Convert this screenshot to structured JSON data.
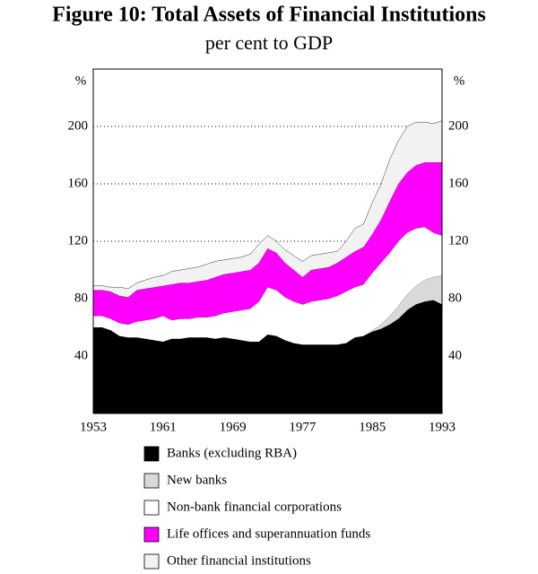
{
  "chart_data": {
    "type": "stacked_area",
    "title": "Figure 10: Total Assets of Financial Institutions",
    "subtitle": "per cent to GDP",
    "y_label": "%",
    "x": [
      1953,
      1954,
      1955,
      1956,
      1957,
      1958,
      1959,
      1960,
      1961,
      1962,
      1963,
      1964,
      1965,
      1966,
      1967,
      1968,
      1969,
      1970,
      1971,
      1972,
      1973,
      1974,
      1975,
      1976,
      1977,
      1978,
      1979,
      1980,
      1981,
      1982,
      1983,
      1984,
      1985,
      1986,
      1987,
      1988,
      1989,
      1990,
      1991,
      1992,
      1993
    ],
    "xlim": [
      1953,
      1993
    ],
    "xticks": [
      1953,
      1961,
      1969,
      1977,
      1985,
      1993
    ],
    "ylim": [
      0,
      240
    ],
    "yticks": [
      40,
      80,
      120,
      160,
      200
    ],
    "grid": true,
    "series": [
      {
        "name": "Banks (excluding RBA)",
        "color": "#000000",
        "values": [
          60,
          60,
          58,
          54,
          53,
          53,
          52,
          51,
          50,
          52,
          52,
          53,
          53,
          53,
          52,
          53,
          52,
          51,
          50,
          50,
          55,
          54,
          51,
          49,
          48,
          48,
          48,
          48,
          48,
          49,
          53,
          54,
          57,
          59,
          62,
          66,
          72,
          76,
          78,
          79,
          76
        ]
      },
      {
        "name": "New banks",
        "color": "#d9d9d9",
        "values": [
          0,
          0,
          0,
          0,
          0,
          0,
          0,
          0,
          0,
          0,
          0,
          0,
          0,
          0,
          0,
          0,
          0,
          0,
          0,
          0,
          0,
          0,
          0,
          0,
          0,
          0,
          0,
          0,
          0,
          0,
          0,
          0,
          1,
          3,
          6,
          9,
          11,
          13,
          15,
          16,
          20
        ]
      },
      {
        "name": "Non-bank financial corporations",
        "color": "#ffffff",
        "values": [
          8,
          8,
          8,
          9,
          9,
          11,
          13,
          15,
          18,
          13,
          14,
          13,
          14,
          14,
          16,
          17,
          19,
          21,
          23,
          28,
          33,
          32,
          30,
          29,
          28,
          30,
          31,
          32,
          34,
          36,
          35,
          36,
          40,
          43,
          44,
          45,
          43,
          40,
          37,
          31,
          28
        ]
      },
      {
        "name": "Life offices and superannuation funds",
        "color": "#ff00ff",
        "values": [
          18,
          18,
          19,
          19,
          19,
          22,
          22,
          22,
          21,
          25,
          25,
          25,
          25,
          26,
          27,
          27,
          27,
          27,
          27,
          27,
          27,
          26,
          24,
          22,
          19,
          22,
          22,
          22,
          23,
          24,
          25,
          26,
          27,
          30,
          36,
          40,
          42,
          44,
          45,
          49,
          51
        ]
      },
      {
        "name": "Other financial institutions",
        "color": "#f2f2f2",
        "values": [
          3,
          3,
          3,
          6,
          6,
          5,
          6,
          7,
          7,
          9,
          9,
          10,
          10,
          11,
          11,
          10,
          10,
          10,
          11,
          13,
          9,
          8,
          9,
          10,
          11,
          10,
          10,
          10,
          8,
          11,
          16,
          16,
          22,
          25,
          29,
          30,
          32,
          30,
          28,
          27,
          29
        ]
      }
    ]
  }
}
